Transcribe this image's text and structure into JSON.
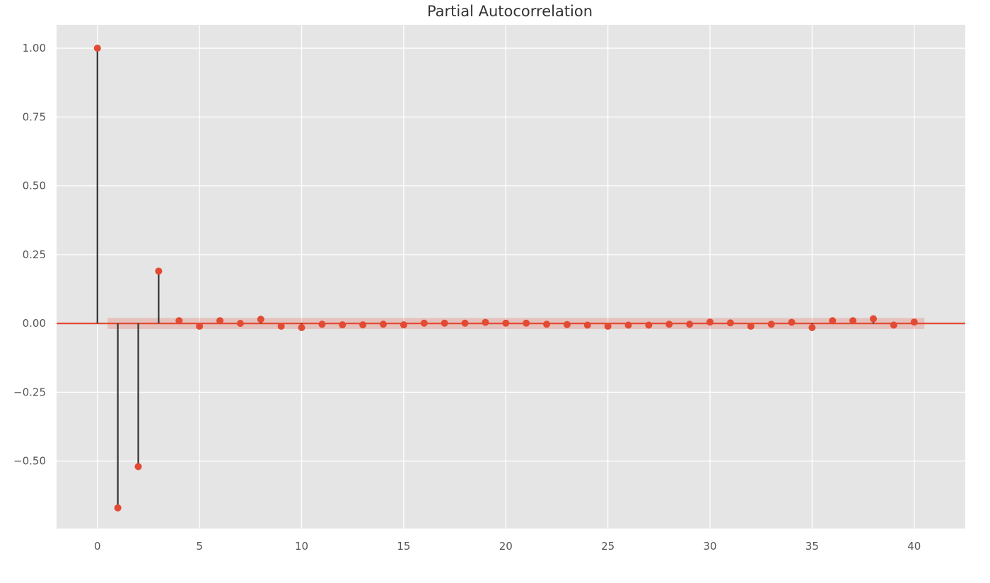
{
  "chart_data": {
    "type": "scatter",
    "subtype": "stem",
    "title": "Partial Autocorrelation",
    "xlabel": "",
    "ylabel": "",
    "xlim": [
      -2,
      42.5
    ],
    "ylim": [
      -0.745,
      1.085
    ],
    "xticks": [
      0,
      5,
      10,
      15,
      20,
      25,
      30,
      35,
      40
    ],
    "xtick_labels": [
      "0",
      "5",
      "10",
      "15",
      "20",
      "25",
      "30",
      "35",
      "40"
    ],
    "yticks": [
      1.0,
      0.75,
      0.5,
      0.25,
      0.0,
      -0.25,
      -0.5
    ],
    "ytick_labels": [
      "1.00",
      "0.75",
      "0.50",
      "0.25",
      "0.00",
      "−0.25",
      "−0.50"
    ],
    "grid": true,
    "background": "#e5e5e5",
    "marker_color": "#e24a33",
    "stem_color": "#333333",
    "baseline_color": "#e24a33",
    "confidence_band": [
      -0.02,
      0.02
    ],
    "confidence_band_lag_range": [
      0.5,
      40.5
    ],
    "lags": [
      0,
      1,
      2,
      3,
      4,
      5,
      6,
      7,
      8,
      9,
      10,
      11,
      12,
      13,
      14,
      15,
      16,
      17,
      18,
      19,
      20,
      21,
      22,
      23,
      24,
      25,
      26,
      27,
      28,
      29,
      30,
      31,
      32,
      33,
      34,
      35,
      36,
      37,
      38,
      39,
      40
    ],
    "values": [
      1.0,
      -0.67,
      -0.52,
      0.19,
      0.01,
      -0.01,
      0.01,
      0.0,
      0.015,
      -0.01,
      -0.015,
      -0.003,
      -0.005,
      -0.005,
      -0.003,
      -0.005,
      0.001,
      0.001,
      0.001,
      0.004,
      0.001,
      0.001,
      -0.003,
      -0.004,
      -0.006,
      -0.01,
      -0.006,
      -0.006,
      -0.003,
      -0.003,
      0.005,
      0.002,
      -0.01,
      -0.003,
      0.004,
      -0.015,
      0.01,
      0.01,
      0.017,
      -0.006,
      0.005
    ]
  }
}
